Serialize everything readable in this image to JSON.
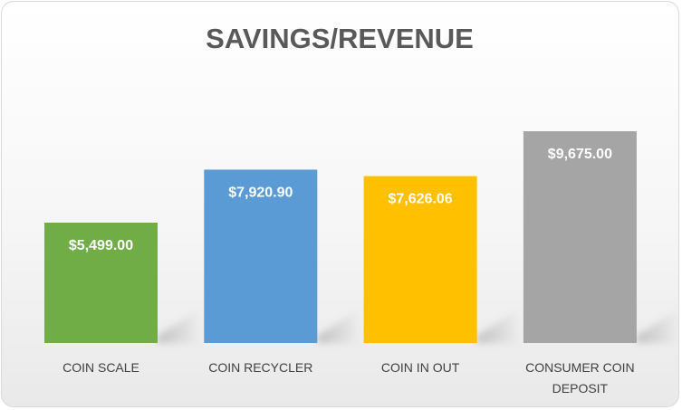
{
  "chart_data": {
    "type": "bar",
    "title": "SAVINGS/REVENUE",
    "categories": [
      [
        "COIN SCALE"
      ],
      [
        "COIN RECYCLER"
      ],
      [
        "COIN IN OUT"
      ],
      [
        "CONSUMER COIN",
        "DEPOSIT"
      ]
    ],
    "values": [
      5499.0,
      7920.9,
      7626.06,
      9675.0
    ],
    "data_labels": [
      "$5,499.00",
      "$7,920.90",
      "$7,626.06",
      "$9,675.00"
    ],
    "colors": [
      "#70ad47",
      "#5b9bd5",
      "#ffc000",
      "#a5a5a5"
    ],
    "xlabel": "",
    "ylabel": "",
    "ylim": [
      0,
      12000
    ],
    "grid": false,
    "legend": "none"
  }
}
